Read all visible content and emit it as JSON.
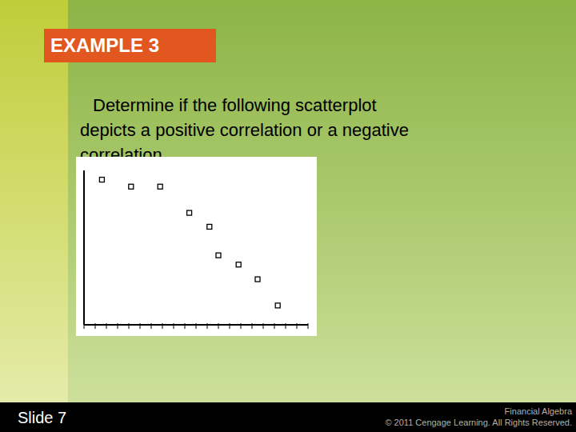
{
  "slide": {
    "heading": "EXAMPLE 3",
    "question": "Determine if the following scatterplot depicts a positive correlation or a negative correlation.",
    "number": "Slide 7",
    "footer": [
      "Financial Algebra",
      "© 2011 Cengage Learning. All Rights Reserved."
    ]
  },
  "chart_data": {
    "type": "scatter",
    "x": [
      1.6,
      4.2,
      6.8,
      9.4,
      11.2,
      12.0,
      13.8,
      15.5,
      17.3
    ],
    "values": [
      18.8,
      17.9,
      17.9,
      14.5,
      12.7,
      9.0,
      7.8,
      5.9,
      2.5
    ],
    "xlim": [
      0,
      20
    ],
    "ylim": [
      0,
      20
    ],
    "xticks": [
      0,
      1,
      2,
      3,
      4,
      5,
      6,
      7,
      8,
      9,
      10,
      11,
      12,
      13,
      14,
      15,
      16,
      17,
      18,
      19,
      20
    ],
    "tick_labels": false,
    "grid": false,
    "marker": "square",
    "color": "#000000"
  }
}
